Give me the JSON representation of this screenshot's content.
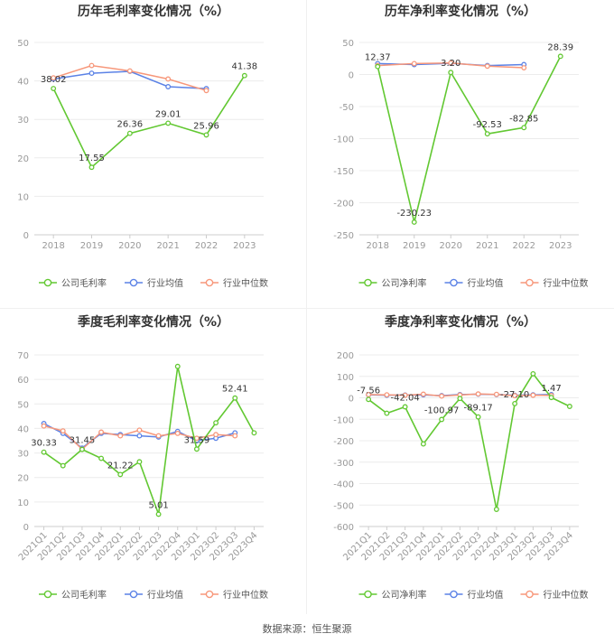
{
  "source_label": "数据来源：恒生聚源",
  "colors": {
    "company": "#62c832",
    "industry_avg": "#5b82e6",
    "industry_median": "#f7977a",
    "grid": "#ececec",
    "axis_text": "#999999",
    "title": "#333333"
  },
  "chart_data": [
    {
      "id": "annual-gross",
      "type": "line",
      "title": "历年毛利率变化情况（%）",
      "categories": [
        "2018",
        "2019",
        "2020",
        "2021",
        "2022",
        "2023"
      ],
      "ylim": [
        0,
        50
      ],
      "yticks": [
        0,
        10,
        20,
        30,
        40,
        50
      ],
      "rotate_xlabels": false,
      "legend": "bottom-center",
      "series": [
        {
          "name": "公司毛利率",
          "color": "#62c832",
          "values": [
            38.02,
            17.55,
            26.36,
            29.01,
            25.96,
            41.38
          ],
          "labels": [
            "38.02",
            "17.55",
            "26.36",
            "29.01",
            "25.96",
            "41.38"
          ]
        },
        {
          "name": "行业均值",
          "color": "#5b82e6",
          "values": [
            40.5,
            42.0,
            42.5,
            38.5,
            38.0,
            null
          ]
        },
        {
          "name": "行业中位数",
          "color": "#f7977a",
          "values": [
            40.8,
            44.0,
            42.6,
            40.5,
            37.5,
            null
          ]
        }
      ]
    },
    {
      "id": "annual-net",
      "type": "line",
      "title": "历年净利率变化情况（%）",
      "categories": [
        "2018",
        "2019",
        "2020",
        "2021",
        "2022",
        "2023"
      ],
      "ylim": [
        -250,
        50
      ],
      "yticks": [
        -250,
        -200,
        -150,
        -100,
        -50,
        0,
        50
      ],
      "rotate_xlabels": false,
      "legend": "bottom-center",
      "series": [
        {
          "name": "公司净利率",
          "color": "#62c832",
          "values": [
            12.37,
            -230.23,
            3.2,
            -92.53,
            -82.85,
            28.39
          ],
          "labels": [
            "12.37",
            "-230.23",
            "3.20",
            "-92.53",
            "-82.85",
            "28.39"
          ]
        },
        {
          "name": "行业均值",
          "color": "#5b82e6",
          "values": [
            17.0,
            15.5,
            17.5,
            14.0,
            15.5,
            null
          ]
        },
        {
          "name": "行业中位数",
          "color": "#f7977a",
          "values": [
            14.0,
            17.0,
            18.0,
            13.0,
            10.5,
            null
          ]
        }
      ]
    },
    {
      "id": "quarterly-gross",
      "type": "line",
      "title": "季度毛利率变化情况（%）",
      "categories": [
        "2021Q1",
        "2021Q2",
        "2021Q3",
        "2021Q4",
        "2022Q1",
        "2022Q2",
        "2022Q3",
        "2022Q4",
        "2023Q1",
        "2023Q2",
        "2023Q3",
        "2023Q4"
      ],
      "ylim": [
        0,
        70
      ],
      "yticks": [
        0,
        10,
        20,
        30,
        40,
        50,
        60,
        70
      ],
      "rotate_xlabels": true,
      "legend": "bottom-center",
      "series": [
        {
          "name": "公司毛利率",
          "color": "#62c832",
          "values": [
            30.33,
            24.8,
            31.45,
            27.8,
            21.22,
            26.4,
            5.01,
            65.3,
            31.59,
            42.3,
            52.41,
            38.2
          ],
          "labels": [
            "30.33",
            "",
            "31.45",
            "",
            "21.22",
            "",
            "5.01",
            "",
            "31.59",
            "",
            "52.41",
            ""
          ]
        },
        {
          "name": "行业均值",
          "color": "#5b82e6",
          "values": [
            42.0,
            38.0,
            32.0,
            38.0,
            37.5,
            37.0,
            36.5,
            38.8,
            35.0,
            36.0,
            38.2,
            null
          ]
        },
        {
          "name": "行业中位数",
          "color": "#f7977a",
          "values": [
            41.0,
            39.0,
            31.5,
            38.5,
            37.0,
            39.3,
            37.0,
            38.0,
            36.0,
            37.5,
            37.0,
            null
          ]
        }
      ]
    },
    {
      "id": "quarterly-net",
      "type": "line",
      "title": "季度净利率变化情况（%）",
      "categories": [
        "2021Q1",
        "2021Q2",
        "2021Q3",
        "2021Q4",
        "2022Q1",
        "2022Q2",
        "2022Q3",
        "2022Q4",
        "2023Q1",
        "2023Q2",
        "2023Q3",
        "2023Q4"
      ],
      "ylim": [
        -600,
        200
      ],
      "yticks": [
        -600,
        -500,
        -400,
        -300,
        -200,
        -100,
        0,
        100,
        200
      ],
      "rotate_xlabels": true,
      "legend": "bottom-center",
      "series": [
        {
          "name": "公司净利率",
          "color": "#62c832",
          "values": [
            -7.56,
            -72.0,
            -42.04,
            -215.0,
            -100.97,
            -3.0,
            -89.17,
            -520.0,
            -27.1,
            112.0,
            1.47,
            -40.0
          ],
          "labels": [
            "-7.56",
            "",
            "-42.04",
            "",
            "-100.97",
            "",
            "-89.17",
            "",
            "-27.10",
            "",
            "1.47",
            ""
          ]
        },
        {
          "name": "行业均值",
          "color": "#5b82e6",
          "values": [
            14.0,
            12.0,
            13.0,
            14.0,
            10.0,
            15.0,
            17.0,
            15.0,
            12.0,
            14.0,
            15.0,
            null
          ]
        },
        {
          "name": "行业中位数",
          "color": "#f7977a",
          "values": [
            15.0,
            14.0,
            12.0,
            17.0,
            8.0,
            13.0,
            18.0,
            16.0,
            10.0,
            12.0,
            11.0,
            null
          ]
        }
      ]
    }
  ]
}
